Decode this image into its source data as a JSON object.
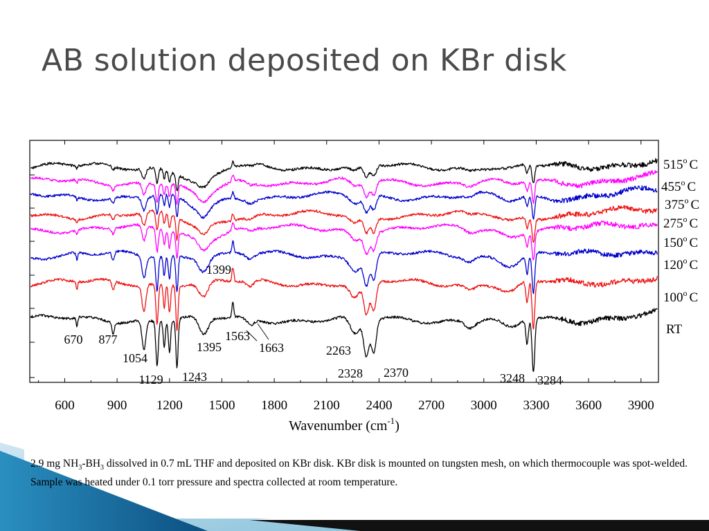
{
  "slide": {
    "title": "AB solution deposited on KBr disk",
    "caption": {
      "p1": "2.9 mg NH",
      "s1": "3",
      "p2": "-BH",
      "s2": "3",
      "p3": " dissolved in 0.7 mL THF and deposited on KBr disk. KBr disk is mounted on tungsten mesh, on which thermocouple was spot-welded. Sample was heated under 0.1 torr pressure and spectra collected at room temperature."
    }
  },
  "chart_data": {
    "type": "line",
    "title": "",
    "xlabel_main": "Wavenumber (cm",
    "xlabel_sup": "-1",
    "xlabel_end": ")",
    "ylabel": "",
    "xlim": [
      400,
      4000
    ],
    "xticks": [
      600,
      900,
      1200,
      1500,
      1800,
      2100,
      2400,
      2700,
      3000,
      3300,
      3600,
      3900
    ],
    "grid": false,
    "legend": "right",
    "series": [
      {
        "name": "515",
        "color": "#000000"
      },
      {
        "name": "455",
        "color": "#ff00ff"
      },
      {
        "name": "375",
        "color": "#0000cc"
      },
      {
        "name": "275",
        "color": "#ee1111"
      },
      {
        "name": "150",
        "color": "#ff00ff"
      },
      {
        "name": "120",
        "color": "#0000cc"
      },
      {
        "name": "100",
        "color": "#ee1111"
      },
      {
        "name": "RT",
        "color": "#000000"
      }
    ],
    "series_label_suffix": "C",
    "series_label_sup": "o",
    "annotations": [
      {
        "text": "670",
        "x": 670
      },
      {
        "text": "877",
        "x": 877
      },
      {
        "text": "1054",
        "x": 1054
      },
      {
        "text": "1129",
        "x": 1129
      },
      {
        "text": "1243",
        "x": 1243
      },
      {
        "text": "1395",
        "x": 1395
      },
      {
        "text": "1399",
        "x": 1399
      },
      {
        "text": "1563",
        "x": 1563
      },
      {
        "text": "1663",
        "x": 1663
      },
      {
        "text": "2263",
        "x": 2263
      },
      {
        "text": "2328",
        "x": 2328
      },
      {
        "text": "2370",
        "x": 2370
      },
      {
        "text": "3248",
        "x": 3248
      },
      {
        "text": "3284",
        "x": 3284
      }
    ]
  }
}
